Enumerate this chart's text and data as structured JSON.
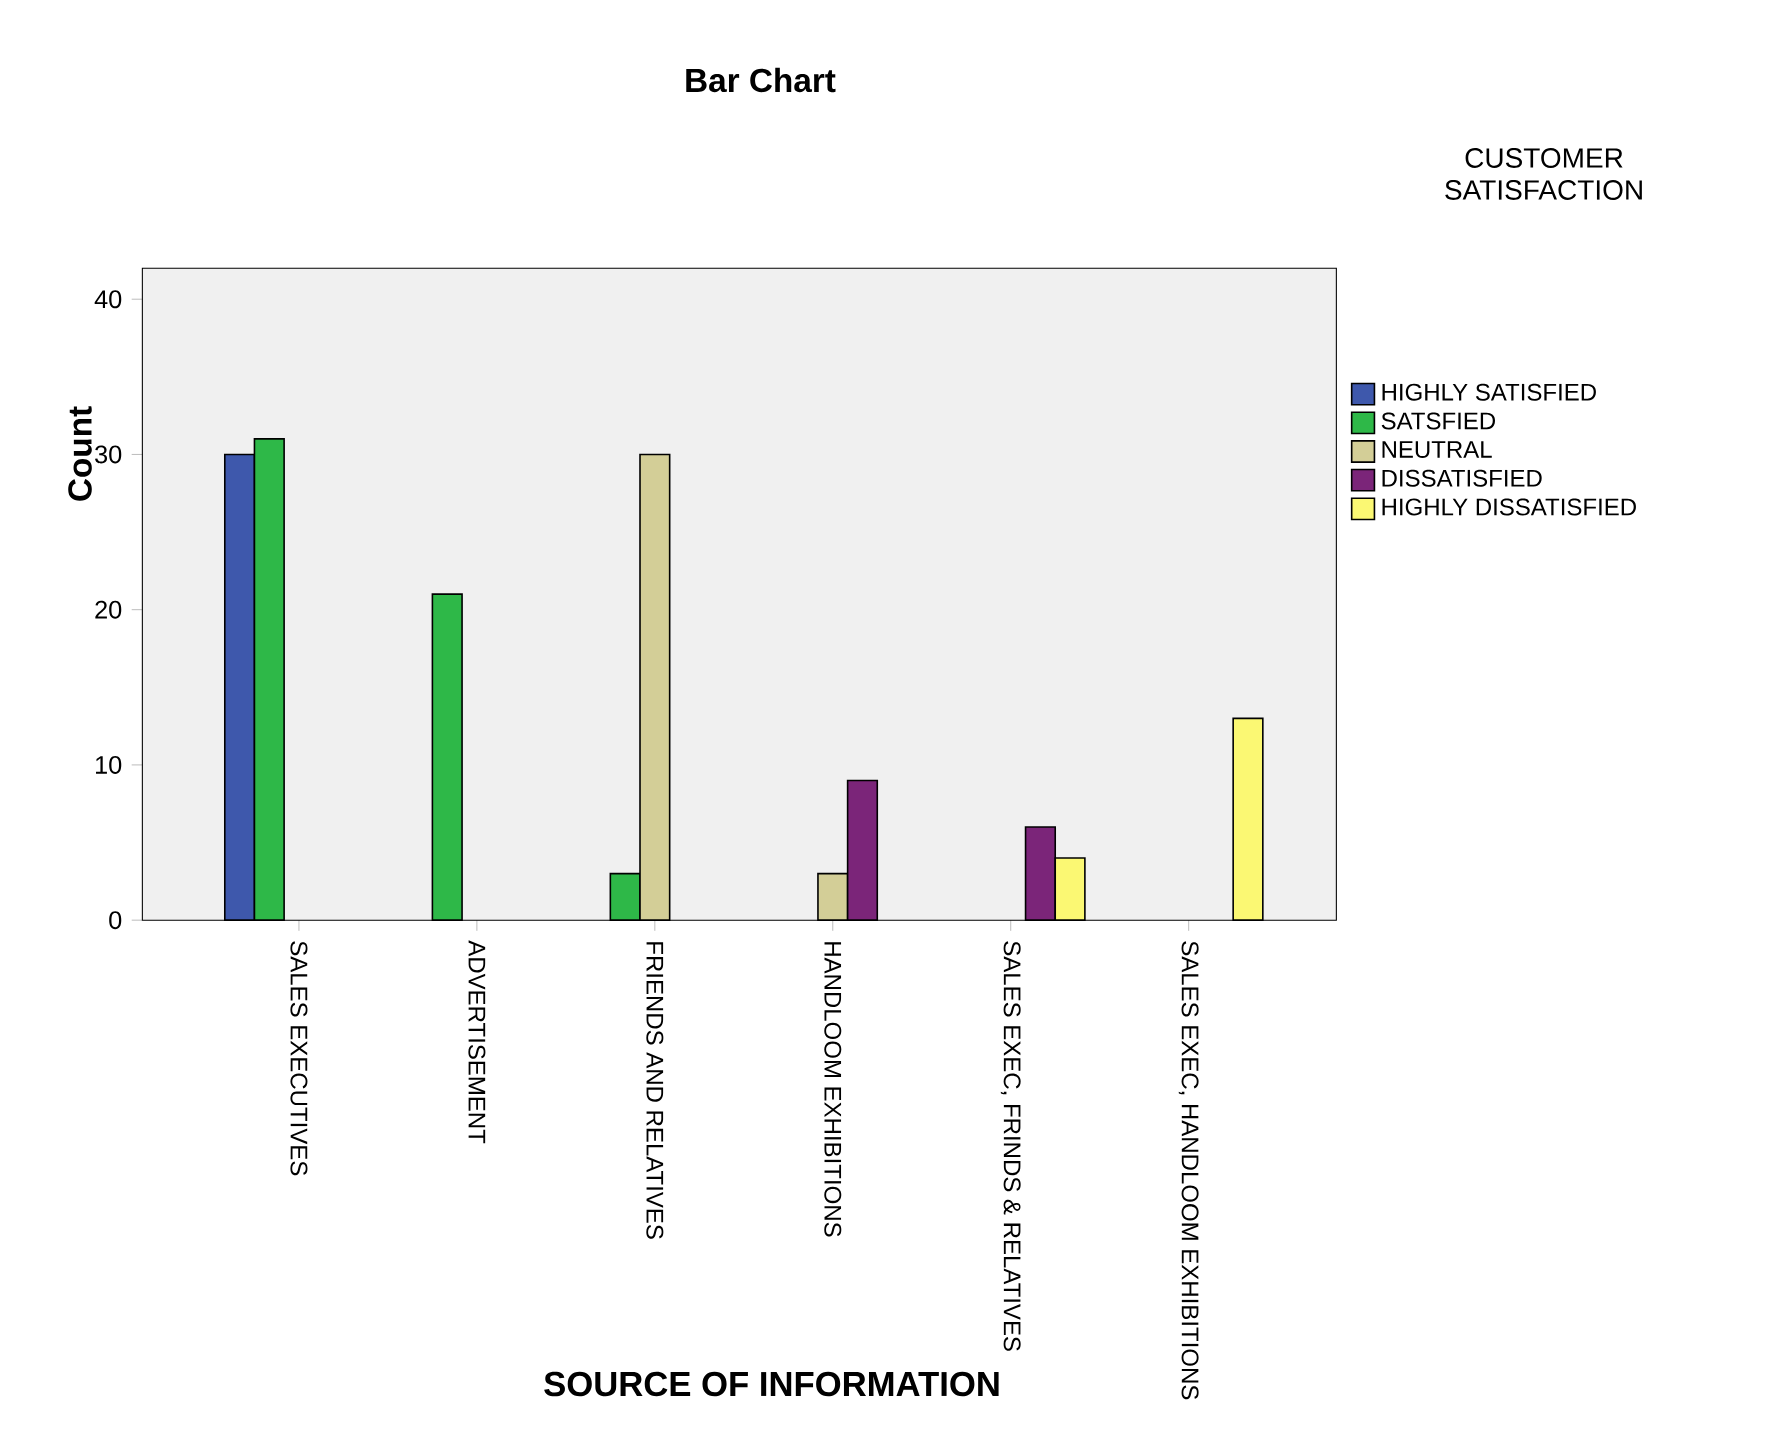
{
  "chart_data": {
    "type": "bar",
    "title": "Bar Chart",
    "xlabel": "SOURCE OF INFORMATION",
    "ylabel": "Count",
    "legend_title": "CUSTOMER SATISFACTION",
    "categories": [
      "SALES EXECUTIVES",
      "ADVERTISEMENT",
      "FRIENDS AND RELATIVES",
      "HANDLOOM EXHIBITIONS",
      "SALES EXEC, FRINDS & RELATIVES",
      "SALES EXEC, HANDLOOM EXHIBITIONS"
    ],
    "series": [
      {
        "name": "HIGHLY SATISFIED",
        "color": "#3e58ac",
        "values": [
          30,
          null,
          null,
          null,
          null,
          null
        ]
      },
      {
        "name": "SATSFIED",
        "color": "#2eb848",
        "values": [
          31,
          21,
          3,
          null,
          null,
          null
        ]
      },
      {
        "name": "NEUTRAL",
        "color": "#d3ce97",
        "values": [
          null,
          null,
          30,
          3,
          null,
          null
        ]
      },
      {
        "name": "DISSATISFIED",
        "color": "#7b2579",
        "values": [
          null,
          null,
          null,
          9,
          6,
          null
        ]
      },
      {
        "name": "HIGHLY DISSATISFIED",
        "color": "#fbf873",
        "values": [
          null,
          null,
          null,
          null,
          4,
          13
        ]
      }
    ],
    "ylim": [
      0,
      42
    ],
    "yticks": [
      0,
      10,
      20,
      30,
      40
    ],
    "legend": "right"
  }
}
